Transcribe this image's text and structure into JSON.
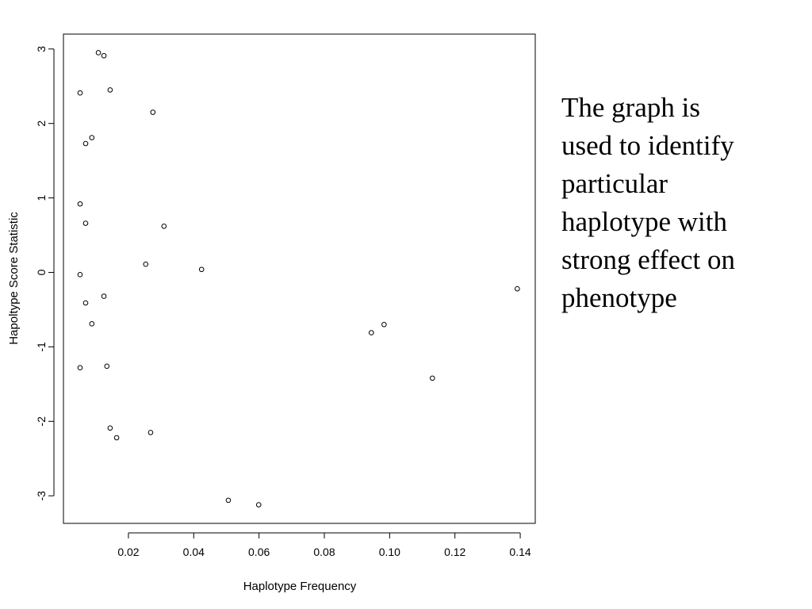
{
  "chart_data": {
    "type": "scatter",
    "x_label": "Haplotype Frequency",
    "y_label": "Hapoltype Score Statistic",
    "x": [
      0.0108,
      0.0125,
      0.0052,
      0.0144,
      0.0275,
      0.0088,
      0.0069,
      0.0052,
      0.0069,
      0.0309,
      0.0253,
      0.0424,
      0.0052,
      0.1391,
      0.0125,
      0.0069,
      0.0088,
      0.0983,
      0.0944,
      0.0134,
      0.0052,
      0.1131,
      0.0144,
      0.0268,
      0.0164,
      0.0506,
      0.0599
    ],
    "values": [
      2.95,
      2.91,
      2.41,
      2.45,
      2.15,
      1.81,
      1.73,
      0.92,
      0.66,
      0.62,
      0.11,
      0.04,
      -0.03,
      -0.22,
      -0.32,
      -0.41,
      -0.69,
      -0.7,
      -0.81,
      -1.26,
      -1.28,
      -1.42,
      -2.09,
      -2.15,
      -2.22,
      -3.06,
      -3.12
    ],
    "color": "#000000",
    "xlim": [
      0.0001,
      0.1446
    ],
    "ylim": [
      -3.37,
      3.2
    ],
    "xticks": [
      0.02,
      0.04,
      0.06,
      0.08,
      {
        "value": 0.1,
        "label": "0.10"
      },
      0.12,
      0.14
    ],
    "yticks": [
      -3,
      -2,
      -1,
      0,
      1,
      2,
      3
    ]
  },
  "note": {
    "lines": [
      "The graph is",
      "used to identify",
      "particular",
      "haplotype with",
      "strong effect on",
      "phenotype"
    ]
  }
}
